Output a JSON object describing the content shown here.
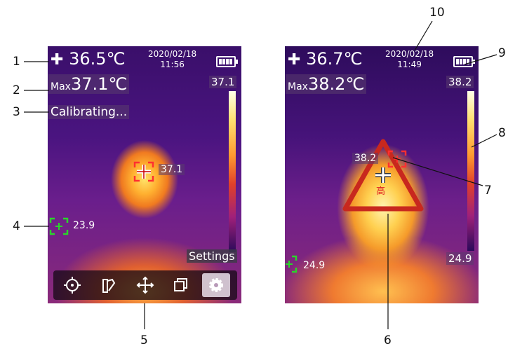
{
  "left_screen": {
    "crosshair_icon": "plus-icon",
    "center_temp": "36.5℃",
    "date": "2020/02/18",
    "time": "11:56",
    "max_label": "Max",
    "max_temp": "37.1℃",
    "scale_top": "37.1",
    "status": "Calibrating...",
    "target_temp": "37.1",
    "min_temp": "23.9",
    "settings_label": "Settings",
    "toolbar_icons": [
      "target-icon",
      "palette-icon",
      "move-icon",
      "window-icon",
      "gear-icon"
    ]
  },
  "right_screen": {
    "center_temp": "36.7℃",
    "date": "2020/02/18",
    "time": "11:49",
    "max_label": "Max",
    "max_temp": "38.2℃",
    "scale_top": "38.2",
    "scale_bottom": "24.9",
    "target_temp": "38.2",
    "warning_char": "高",
    "min_temp": "24.9"
  },
  "callouts": [
    "1",
    "2",
    "3",
    "4",
    "5",
    "6",
    "7",
    "8",
    "9",
    "10"
  ],
  "colors": {
    "min_marker": "#2bd42b",
    "max_marker": "#ff3030",
    "warning": "#c8281e"
  }
}
